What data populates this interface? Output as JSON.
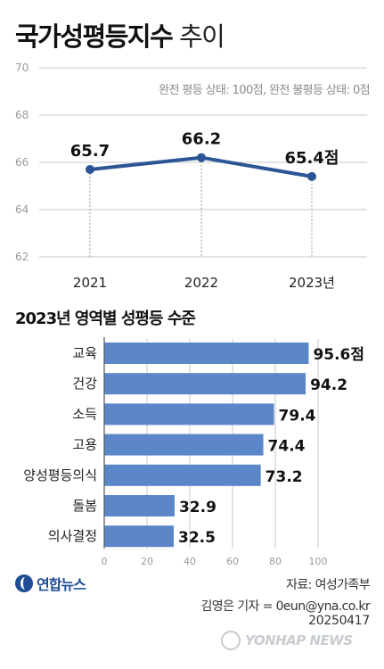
{
  "title": {
    "bold": "국가성평등지수",
    "light": "추이"
  },
  "note": "완전 평등 상태: 100점, 완전 불평등 상태: 0점",
  "subtitle": "2023년 영역별 성평등 수준",
  "colors": {
    "line": "#2b5594",
    "bar": "#5b87c9",
    "grid": "#c8c8c8"
  },
  "chart_data": [
    {
      "type": "line",
      "x": [
        "2021",
        "2022",
        "2023년"
      ],
      "series": [
        {
          "values": [
            65.7,
            66.2,
            65.4
          ]
        }
      ],
      "value_labels": [
        "65.7",
        "66.2",
        "65.4점"
      ],
      "ylim": [
        62,
        70
      ],
      "yticks": [
        "62",
        "64",
        "66",
        "68",
        "70"
      ],
      "grid": true
    },
    {
      "type": "bar",
      "orientation": "horizontal",
      "categories": [
        "교육",
        "건강",
        "소득",
        "고용",
        "양성평등의식",
        "돌봄",
        "의사결정"
      ],
      "values": [
        95.6,
        94.2,
        79.4,
        74.4,
        73.2,
        32.9,
        32.5
      ],
      "value_labels": [
        "95.6점",
        "94.2",
        "79.4",
        "74.4",
        "73.2",
        "32.9",
        "32.5"
      ],
      "xlim": [
        0,
        100
      ],
      "xticks": [
        "0",
        "20",
        "40",
        "60",
        "80",
        "100"
      ],
      "grid": true
    }
  ],
  "footer": {
    "logo": "연합뉴스",
    "source": "자료: 여성가족부",
    "credit": "김영은 기자 = 0eun@yna.co.kr",
    "date": "20250417",
    "watermark": "YONHAP NEWS"
  }
}
